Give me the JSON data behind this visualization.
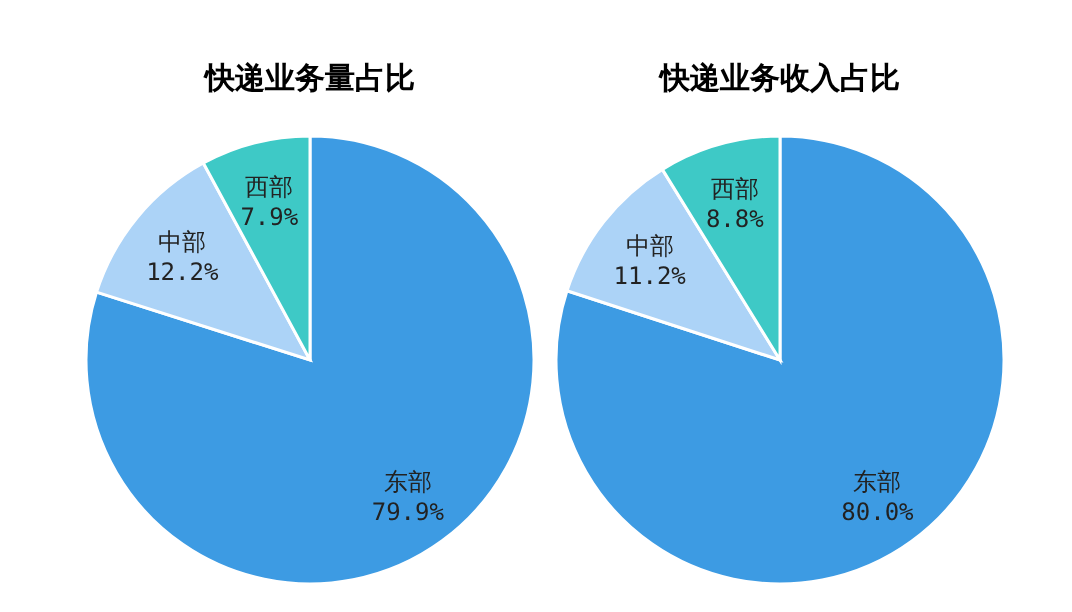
{
  "chart_data": [
    {
      "type": "pie",
      "title": "快递业务量占比",
      "categories": [
        "东部",
        "中部",
        "西部"
      ],
      "values": [
        79.9,
        12.2,
        7.9
      ],
      "value_labels": [
        "79.9%",
        "12.2%",
        "7.9%"
      ],
      "colors": [
        "#3d9be3",
        "#acd3f7",
        "#3ec9c6"
      ]
    },
    {
      "type": "pie",
      "title": "快递业务收入占比",
      "categories": [
        "东部",
        "中部",
        "西部"
      ],
      "values": [
        80.0,
        11.2,
        8.8
      ],
      "value_labels": [
        "80.0%",
        "11.2%",
        "8.8%"
      ],
      "colors": [
        "#3d9be3",
        "#acd3f7",
        "#3ec9c6"
      ]
    }
  ]
}
